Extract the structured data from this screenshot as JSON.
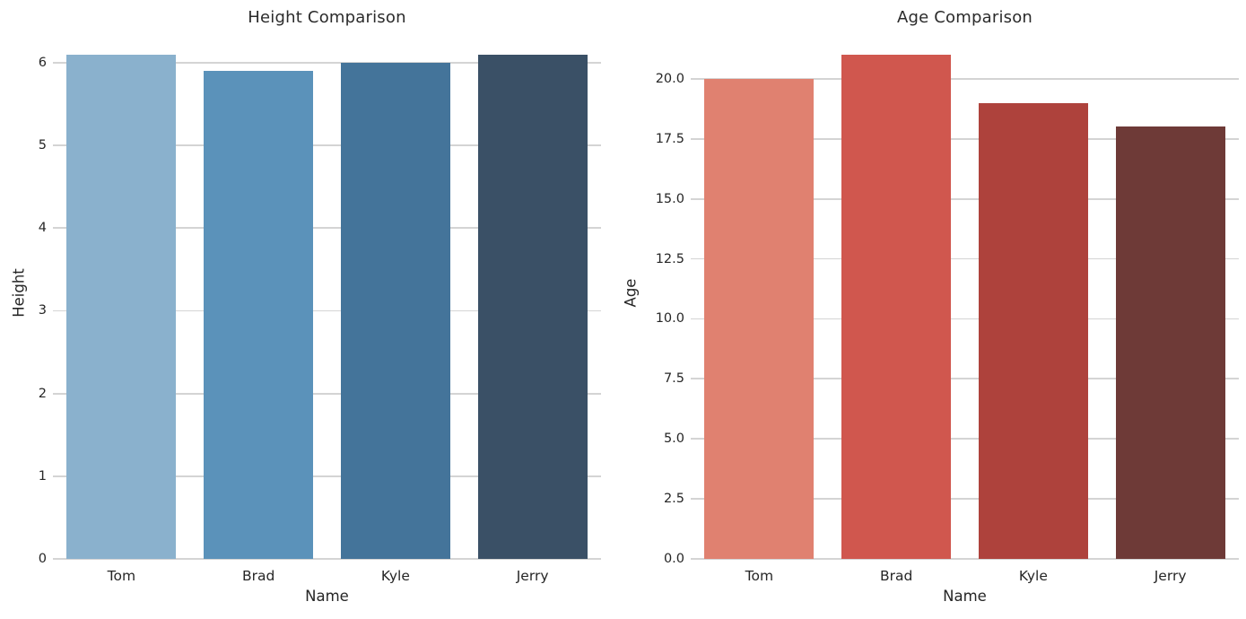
{
  "figure": {
    "background_color": "#ffffff",
    "text_color": "#262626",
    "grid_color": "#d4d4d4"
  },
  "chart_data": [
    {
      "type": "bar",
      "title": "Height Comparison",
      "xlabel": "Name",
      "ylabel": "Height",
      "categories": [
        "Tom",
        "Brad",
        "Kyle",
        "Jerry"
      ],
      "values": [
        6.1,
        5.9,
        6.0,
        6.1
      ],
      "bar_colors": [
        "#8ab1cd",
        "#5b92ba",
        "#44749a",
        "#3a5066"
      ],
      "ylim": [
        0,
        6.4
      ],
      "yticks": [
        0,
        1,
        2,
        3,
        4,
        5,
        6
      ],
      "ytick_labels": [
        "0",
        "1",
        "2",
        "3",
        "4",
        "5",
        "6"
      ],
      "grid": true,
      "legend": null
    },
    {
      "type": "bar",
      "title": "Age Comparison",
      "xlabel": "Name",
      "ylabel": "Age",
      "categories": [
        "Tom",
        "Brad",
        "Kyle",
        "Jerry"
      ],
      "values": [
        20,
        21,
        19,
        18
      ],
      "bar_colors": [
        "#e08170",
        "#d0574e",
        "#ae423c",
        "#6e3a37"
      ],
      "ylim": [
        0,
        22.05
      ],
      "yticks": [
        0,
        2.5,
        5,
        7.5,
        10,
        12.5,
        15,
        17.5,
        20
      ],
      "ytick_labels": [
        "0.0",
        "2.5",
        "5.0",
        "7.5",
        "10.0",
        "12.5",
        "15.0",
        "17.5",
        "20.0"
      ],
      "grid": true,
      "legend": null
    }
  ]
}
